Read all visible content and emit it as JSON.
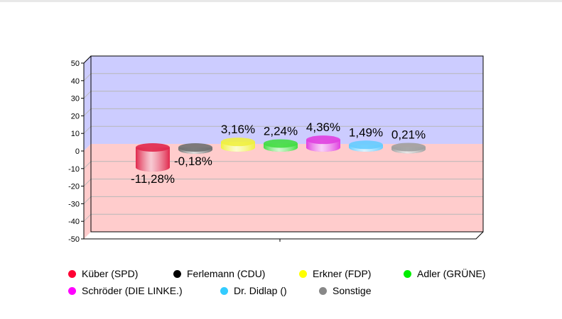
{
  "chart_data": {
    "type": "bar",
    "style": "3d-cylinder",
    "categories": [
      "Küber (SPD)",
      "Ferlemann (CDU)",
      "Erkner (FDP)",
      "Adler (GRÜNE)",
      "Schröder (DIE LINKE.)",
      "Dr. Didlap ()",
      "Sonstige"
    ],
    "values": [
      -11.28,
      -0.18,
      3.16,
      2.24,
      4.36,
      1.49,
      0.21
    ],
    "data_labels": [
      "-11,28%",
      "-0,18%",
      "3,16%",
      "2,24%",
      "4,36%",
      "1,49%",
      "0,21%"
    ],
    "colors": [
      "#ff0033",
      "#000000",
      "#ffff00",
      "#00ee00",
      "#ff00ff",
      "#33ccff",
      "#888888"
    ],
    "bar_colors": [
      "#e0284c",
      "#707070",
      "#f0f040",
      "#44dd44",
      "#e040e0",
      "#66ccff",
      "#a0a0a0"
    ],
    "ylim": [
      -50,
      50
    ],
    "yticks": [
      "50",
      "40",
      "30",
      "20",
      "10",
      "0",
      "-10",
      "-20",
      "-30",
      "-40",
      "-50"
    ],
    "background_positive": "#ccccff",
    "background_negative": "#ffcccc",
    "grid": true,
    "legend_position": "bottom"
  }
}
